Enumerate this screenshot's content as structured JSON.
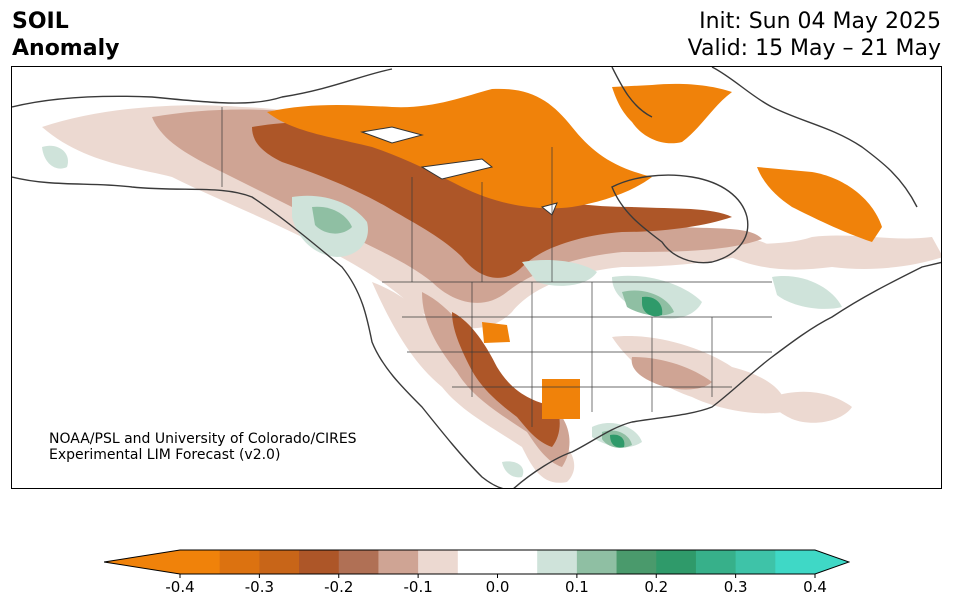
{
  "header": {
    "title_line1": "SOIL",
    "title_line2": "Anomaly",
    "init": "Init: Sun 04 May 2025",
    "valid": "Valid: 15 May – 21 May"
  },
  "credit": {
    "line1": "NOAA/PSL and University of Colorado/CIRES",
    "line2": "Experimental LIM Forecast (v2.0)"
  },
  "colorbar": {
    "colors": [
      "#f0820a",
      "#dc7210",
      "#c86518",
      "#ad5628",
      "#b07055",
      "#cfa494",
      "#ecd9d1",
      "#ffffff",
      "#ffffff",
      "#cfe3da",
      "#8fbfa3",
      "#4a9a6c",
      "#2f9a6a",
      "#37b08a",
      "#3ec3a8",
      "#3fd8c6"
    ],
    "under_color": "#f0820a",
    "over_color": "#3fd8c6",
    "ticks": [
      "-0.4",
      "-0.3",
      "-0.2",
      "-0.1",
      "0.0",
      "0.1",
      "0.2",
      "0.3",
      "0.4"
    ]
  },
  "colors": {
    "dry_strong": "#f0820a",
    "dry_mid": "#ad5628",
    "dry_light": "#cfa494",
    "dry_faint": "#ecd9d1",
    "wet_faint": "#cfe3da",
    "wet_mid": "#8fbfa3",
    "wet_strong": "#2f9a6a"
  }
}
